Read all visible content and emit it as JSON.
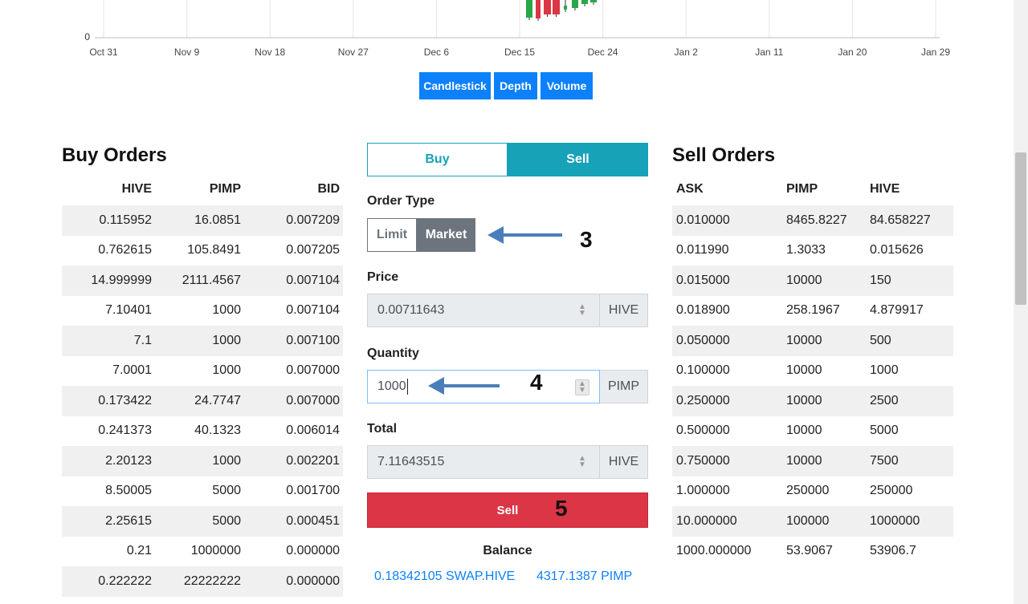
{
  "chart": {
    "y_zero_label": "0",
    "x_labels": [
      "Oct 31",
      "Nov 9",
      "Nov 18",
      "Nov 27",
      "Dec 6",
      "Dec 15",
      "Dec 24",
      "Jan 2",
      "Jan 11",
      "Jan 20",
      "Jan 29"
    ],
    "buttons": [
      "Candlestick",
      "Depth",
      "Volume"
    ],
    "button_color": "#0d80fb",
    "up_color": "#28a745",
    "down_color": "#dc3545"
  },
  "buy_orders": {
    "title": "Buy Orders",
    "headers": [
      "HIVE",
      "PIMP",
      "BID"
    ],
    "rows": [
      [
        "0.115952",
        "16.0851",
        "0.007209"
      ],
      [
        "0.762615",
        "105.8491",
        "0.007205"
      ],
      [
        "14.999999",
        "2111.4567",
        "0.007104"
      ],
      [
        "7.10401",
        "1000",
        "0.007104"
      ],
      [
        "7.1",
        "1000",
        "0.007100"
      ],
      [
        "7.0001",
        "1000",
        "0.007000"
      ],
      [
        "0.173422",
        "24.7747",
        "0.007000"
      ],
      [
        "0.241373",
        "40.1323",
        "0.006014"
      ],
      [
        "2.20123",
        "1000",
        "0.002201"
      ],
      [
        "8.50005",
        "5000",
        "0.001700"
      ],
      [
        "2.25615",
        "5000",
        "0.000451"
      ],
      [
        "0.21",
        "1000000",
        "0.000000"
      ],
      [
        "0.222222",
        "22222222",
        "0.000000"
      ]
    ]
  },
  "sell_orders": {
    "title": "Sell Orders",
    "headers": [
      "ASK",
      "PIMP",
      "HIVE"
    ],
    "rows": [
      [
        "0.010000",
        "8465.8227",
        "84.658227"
      ],
      [
        "0.011990",
        "1.3033",
        "0.015626"
      ],
      [
        "0.015000",
        "10000",
        "150"
      ],
      [
        "0.018900",
        "258.1967",
        "4.879917"
      ],
      [
        "0.050000",
        "10000",
        "500"
      ],
      [
        "0.100000",
        "10000",
        "1000"
      ],
      [
        "0.250000",
        "10000",
        "2500"
      ],
      [
        "0.500000",
        "10000",
        "5000"
      ],
      [
        "0.750000",
        "10000",
        "7500"
      ],
      [
        "1.000000",
        "250000",
        "250000"
      ],
      [
        "10.000000",
        "100000",
        "1000000"
      ],
      [
        "1000.000000",
        "53.9067",
        "53906.7"
      ]
    ]
  },
  "form": {
    "tab_buy": "Buy",
    "tab_sell": "Sell",
    "tab_selected": "Sell",
    "order_type_label": "Order Type",
    "order_type_limit": "Limit",
    "order_type_market": "Market",
    "order_type_selected": "Market",
    "price_label": "Price",
    "price_value": "0.00711643",
    "price_unit": "HIVE",
    "quantity_label": "Quantity",
    "quantity_value": "1000",
    "quantity_unit": "PIMP",
    "total_label": "Total",
    "total_value": "7.11643515",
    "total_unit": "HIVE",
    "submit_label": "Sell",
    "balance_title": "Balance",
    "balance_hive": "0.18342105 SWAP.HIVE",
    "balance_pimp": "4317.1387 PIMP"
  },
  "annotations": {
    "step_order_type": "3",
    "step_quantity": "4",
    "step_submit": "5",
    "arrow_color": "#4a7ebb"
  }
}
